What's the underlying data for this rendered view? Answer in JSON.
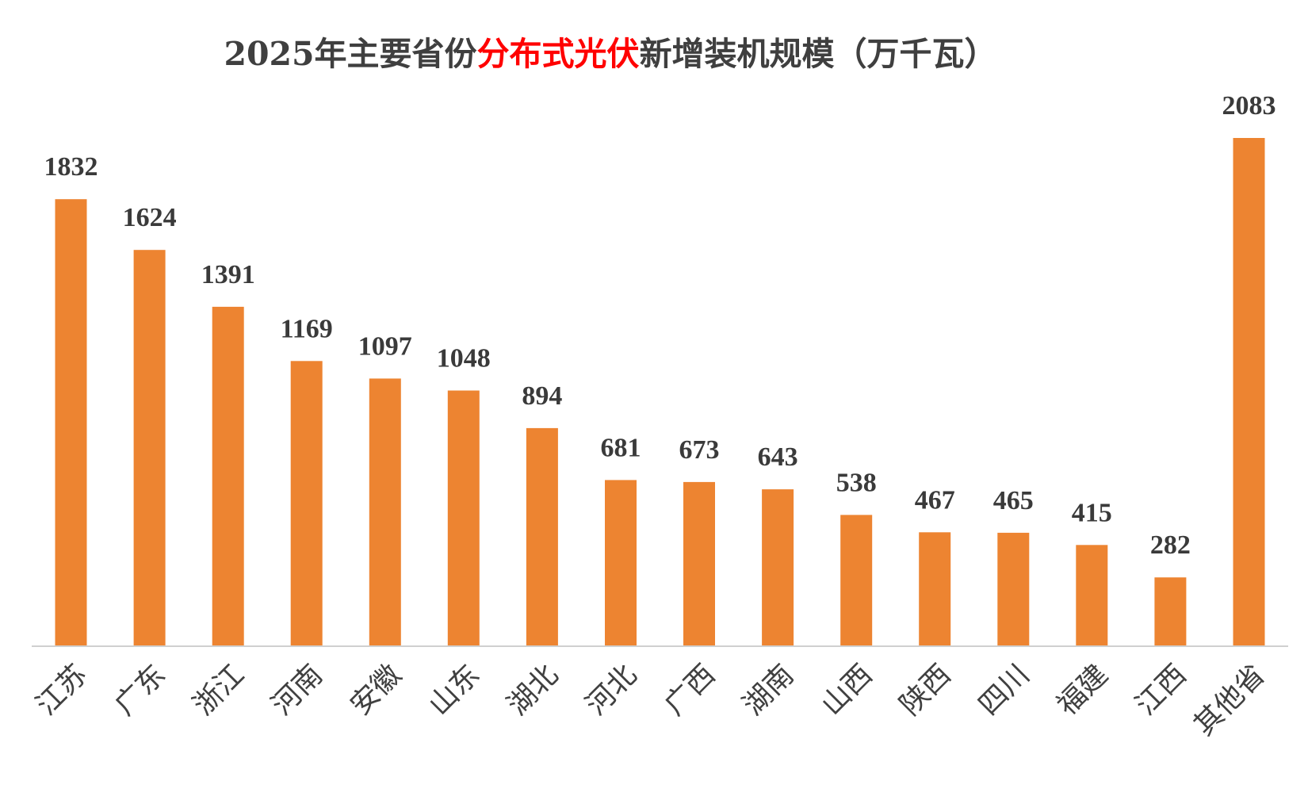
{
  "colors": {
    "bar": "#ed8431",
    "axis": "#d0d0d0",
    "title": "#3f3f3f",
    "title_highlight": "#ff0000"
  },
  "chart_data": {
    "type": "bar",
    "title": "2025年主要省份分布式光伏新增装机规模（万千瓦）",
    "title_parts": {
      "before": "2025年主要省份",
      "highlight": "分布式光伏",
      "after": "新增装机规模（万千瓦）"
    },
    "xlabel": "",
    "ylabel": "",
    "categories": [
      "江苏",
      "广东",
      "浙江",
      "河南",
      "安徽",
      "山东",
      "湖北",
      "河北",
      "广西",
      "湖南",
      "山西",
      "陕西",
      "四川",
      "福建",
      "江西",
      "其他省"
    ],
    "values": [
      1832,
      1624,
      1391,
      1169,
      1097,
      1048,
      894,
      681,
      673,
      643,
      538,
      467,
      465,
      415,
      282,
      2083
    ],
    "value_labels": [
      "1832",
      "1624",
      "1391",
      "1169",
      "1097",
      "1048",
      "894",
      "681",
      "673",
      "643",
      "538",
      "467",
      "465",
      "415",
      "282",
      "2083"
    ],
    "ylim": [
      0,
      2083
    ],
    "grid": false,
    "legend": "none"
  }
}
